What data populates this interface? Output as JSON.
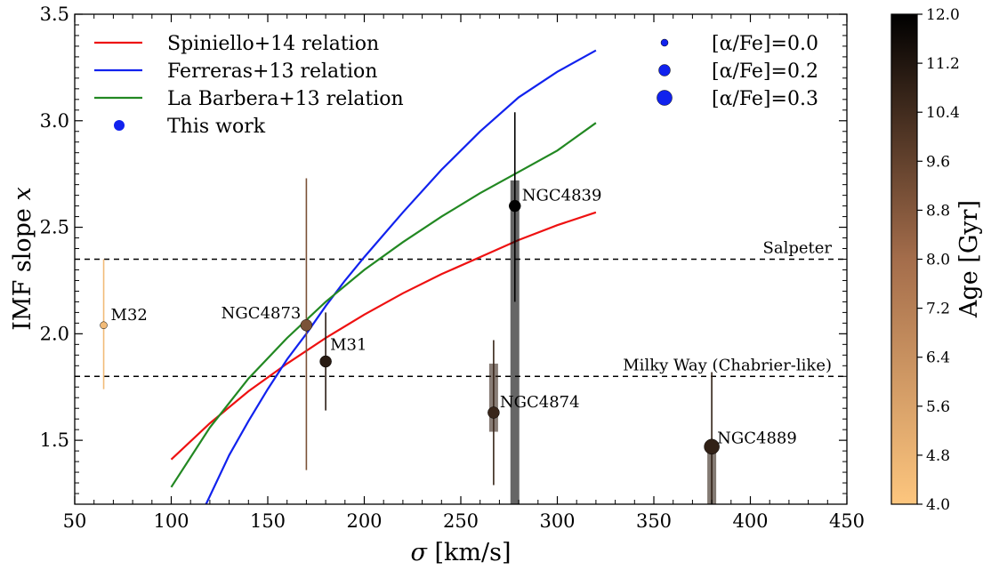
{
  "chart_data": {
    "type": "scatter",
    "xlabel": "σ [km/s]",
    "ylabel_text": "IMF slope ",
    "ylabel_var": "x",
    "xlim": [
      50,
      450
    ],
    "ylim": [
      1.2,
      3.5
    ],
    "xticks": [
      50,
      100,
      150,
      200,
      250,
      300,
      350,
      400,
      450
    ],
    "yticks": [
      1.5,
      2.0,
      2.5,
      3.0,
      3.5
    ],
    "xtick_labels": [
      "50",
      "100",
      "150",
      "200",
      "250",
      "300",
      "350",
      "400",
      "450"
    ],
    "ytick_labels": [
      "1.5",
      "2.0",
      "2.5",
      "3.0",
      "3.5"
    ],
    "grid": false,
    "legend_position": "top-left",
    "relations": [
      {
        "name": "Spiniello+14 relation",
        "color": "#ee1111",
        "x": [
          100,
          120,
          140,
          160,
          180,
          200,
          220,
          240,
          260,
          280,
          300,
          320
        ],
        "y": [
          1.41,
          1.58,
          1.73,
          1.86,
          1.98,
          2.09,
          2.19,
          2.28,
          2.36,
          2.44,
          2.51,
          2.57
        ]
      },
      {
        "name": "Ferreras+13 relation",
        "color": "#1122ee",
        "x": [
          118,
          130,
          140,
          150,
          160,
          170,
          180,
          190,
          200,
          220,
          240,
          260,
          280,
          300,
          320
        ],
        "y": [
          1.2,
          1.43,
          1.59,
          1.74,
          1.88,
          2.0,
          2.13,
          2.25,
          2.36,
          2.57,
          2.77,
          2.95,
          3.11,
          3.23,
          3.33
        ]
      },
      {
        "name": "La Barbera+13 relation",
        "color": "#228822",
        "x": [
          100,
          120,
          140,
          160,
          180,
          200,
          220,
          240,
          260,
          280,
          300,
          320
        ],
        "y": [
          1.28,
          1.56,
          1.79,
          1.98,
          2.15,
          2.3,
          2.43,
          2.55,
          2.66,
          2.76,
          2.86,
          2.99
        ]
      }
    ],
    "this_work_label": "This work",
    "this_work_color": "#1122ee",
    "reference_lines": [
      {
        "label": "Salpeter",
        "y": 2.35
      },
      {
        "label": "Milky Way (Chabrier-like)",
        "y": 1.8
      }
    ],
    "size_legend": [
      {
        "label": "[α/Fe]=0.0",
        "alpha_fe": 0.0
      },
      {
        "label": "[α/Fe]=0.2",
        "alpha_fe": 0.2
      },
      {
        "label": "[α/Fe]=0.3",
        "alpha_fe": 0.3
      }
    ],
    "points": [
      {
        "name": "M32",
        "sigma": 65,
        "imf": 2.04,
        "err_low": 1.74,
        "err_high": 2.35,
        "age": 4.5,
        "alpha_fe": 0.0
      },
      {
        "name": "NGC4873",
        "sigma": 170,
        "imf": 2.04,
        "err_low": 1.36,
        "err_high": 2.73,
        "age": 9.0,
        "alpha_fe": 0.2
      },
      {
        "name": "M31",
        "sigma": 180,
        "imf": 1.87,
        "err_low": 1.64,
        "err_high": 2.1,
        "age": 11.0,
        "alpha_fe": 0.2
      },
      {
        "name": "NGC4874",
        "sigma": 267,
        "imf": 1.63,
        "err_low": 1.29,
        "err_high": 1.97,
        "box_low": 1.54,
        "box_high": 1.86,
        "age": 10.6,
        "alpha_fe": 0.2
      },
      {
        "name": "NGC4839",
        "sigma": 278,
        "imf": 2.6,
        "err_low": 2.15,
        "err_high": 3.04,
        "box_low": 1.2,
        "box_high": 2.72,
        "age": 12.0,
        "alpha_fe": 0.2
      },
      {
        "name": "NGC4889",
        "sigma": 380,
        "imf": 1.47,
        "err_low": 1.2,
        "err_high": 1.82,
        "box_low": 1.2,
        "box_high": 1.47,
        "age": 10.8,
        "alpha_fe": 0.3
      }
    ],
    "colorbar": {
      "label": "Age [Gyr]",
      "min": 4.0,
      "max": 12.0,
      "ticks": [
        "4.0",
        "4.8",
        "5.6",
        "6.4",
        "7.2",
        "8.0",
        "8.8",
        "9.6",
        "10.4",
        "11.2",
        "12.0"
      ],
      "color_low": "#fdc67e",
      "color_mid": "#a46d4b",
      "color_high": "#000000"
    }
  }
}
